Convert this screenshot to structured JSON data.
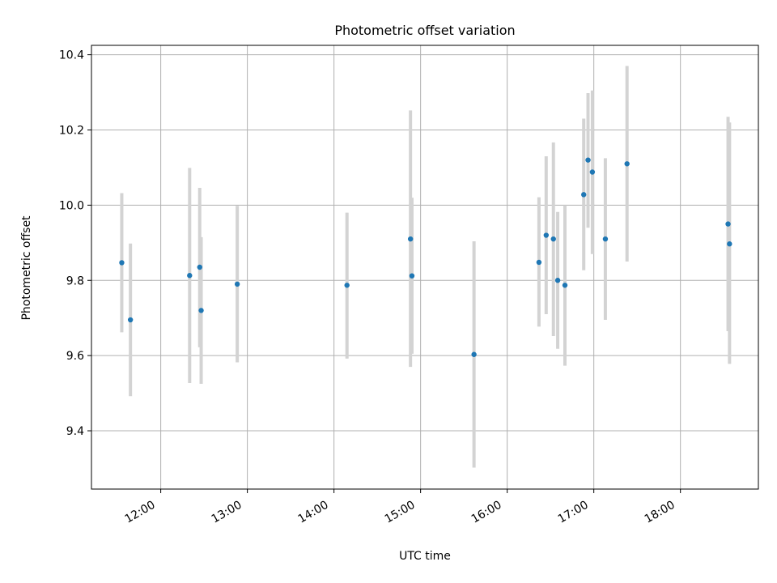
{
  "chart_data": {
    "type": "scatter",
    "title": "Photometric offset variation",
    "xlabel": "UTC time",
    "ylabel": "Photometric offset",
    "x_ticks": [
      "12:00",
      "13:00",
      "14:00",
      "15:00",
      "16:00",
      "17:00",
      "18:00"
    ],
    "y_ticks": [
      "9.4",
      "9.6",
      "9.8",
      "10.0",
      "10.2",
      "10.4"
    ],
    "xlim": [
      "11:12",
      "18:54"
    ],
    "ylim": [
      9.245,
      10.425
    ],
    "grid": true,
    "point_color": "#1f77b4",
    "errorbar_color": "#d3d3d3",
    "points": [
      {
        "time": "11:33",
        "y": 9.847,
        "ylow": 9.662,
        "yhigh": 10.032
      },
      {
        "time": "11:39",
        "y": 9.695,
        "ylow": 9.492,
        "yhigh": 9.898
      },
      {
        "time": "12:20",
        "y": 9.813,
        "ylow": 9.527,
        "yhigh": 10.099
      },
      {
        "time": "12:27",
        "y": 9.835,
        "ylow": 9.622,
        "yhigh": 10.046
      },
      {
        "time": "12:28",
        "y": 9.72,
        "ylow": 9.525,
        "yhigh": 9.915
      },
      {
        "time": "12:53",
        "y": 9.79,
        "ylow": 9.582,
        "yhigh": 9.998
      },
      {
        "time": "14:09",
        "y": 9.787,
        "ylow": 9.592,
        "yhigh": 9.98
      },
      {
        "time": "14:53",
        "y": 9.91,
        "ylow": 9.57,
        "yhigh": 10.252
      },
      {
        "time": "14:54",
        "y": 9.812,
        "ylow": 9.605,
        "yhigh": 10.02
      },
      {
        "time": "15:37",
        "y": 9.603,
        "ylow": 9.302,
        "yhigh": 9.904
      },
      {
        "time": "16:22",
        "y": 9.848,
        "ylow": 9.677,
        "yhigh": 10.021
      },
      {
        "time": "16:27",
        "y": 9.92,
        "ylow": 9.71,
        "yhigh": 10.13
      },
      {
        "time": "16:32",
        "y": 9.91,
        "ylow": 9.652,
        "yhigh": 10.167
      },
      {
        "time": "16:35",
        "y": 9.8,
        "ylow": 9.618,
        "yhigh": 9.982
      },
      {
        "time": "16:40",
        "y": 9.787,
        "ylow": 9.573,
        "yhigh": 10.0
      },
      {
        "time": "16:53",
        "y": 10.028,
        "ylow": 9.827,
        "yhigh": 10.23
      },
      {
        "time": "16:56",
        "y": 10.12,
        "ylow": 9.94,
        "yhigh": 10.298
      },
      {
        "time": "16:59",
        "y": 10.088,
        "ylow": 9.87,
        "yhigh": 10.305
      },
      {
        "time": "17:08",
        "y": 9.91,
        "ylow": 9.695,
        "yhigh": 10.125
      },
      {
        "time": "17:23",
        "y": 10.11,
        "ylow": 9.85,
        "yhigh": 10.37
      },
      {
        "time": "18:33",
        "y": 9.95,
        "ylow": 9.665,
        "yhigh": 10.235
      },
      {
        "time": "18:34",
        "y": 9.897,
        "ylow": 9.578,
        "yhigh": 10.22
      }
    ]
  }
}
